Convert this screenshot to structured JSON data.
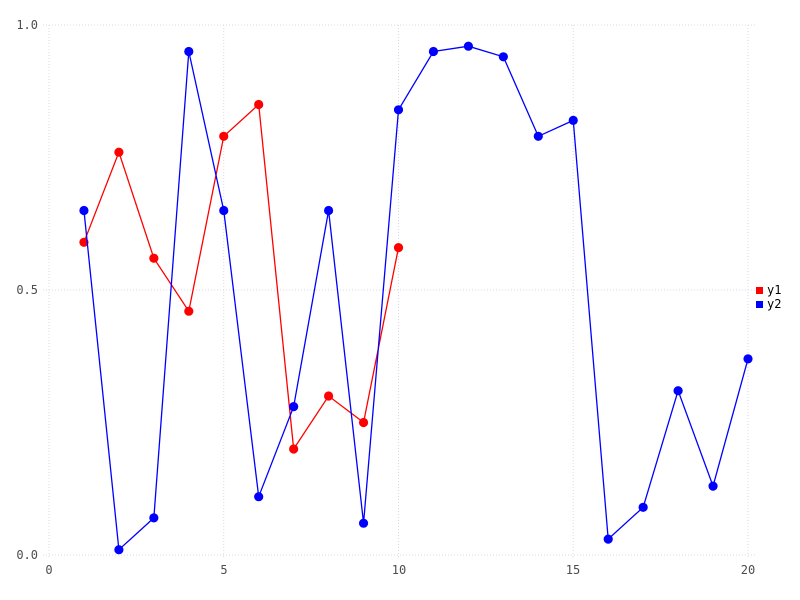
{
  "chart_data": {
    "type": "line",
    "title": "",
    "xlabel": "",
    "ylabel": "",
    "xlim": [
      0,
      20
    ],
    "ylim": [
      0.0,
      1.0
    ],
    "grid": "dotted",
    "legend_position": "right-middle",
    "background_color": "#ffffff",
    "gridline_color": "#d9d9e6",
    "tick_label_color": "#4d4d4d",
    "xticks": [
      {
        "value": 0,
        "label": "0"
      },
      {
        "value": 5,
        "label": "5"
      },
      {
        "value": 10,
        "label": "10"
      },
      {
        "value": 15,
        "label": "15"
      },
      {
        "value": 20,
        "label": "20"
      }
    ],
    "yticks": [
      {
        "value": 1.0,
        "label": "1.0"
      },
      {
        "value": 0.5,
        "label": "0.5"
      },
      {
        "value": 0.0,
        "label": "0.0"
      }
    ],
    "series": [
      {
        "name": "y1",
        "color": "#ff0000",
        "marker": "circle",
        "x": [
          1,
          2,
          3,
          4,
          5,
          6,
          7,
          8,
          9,
          10
        ],
        "values": [
          0.59,
          0.76,
          0.56,
          0.46,
          0.79,
          0.85,
          0.2,
          0.3,
          0.25,
          0.58
        ]
      },
      {
        "name": "y2",
        "color": "#0000ff",
        "marker": "circle",
        "x": [
          1,
          2,
          3,
          4,
          5,
          6,
          7,
          8,
          9,
          10,
          11,
          12,
          13,
          14,
          15,
          16,
          17,
          18,
          19,
          20
        ],
        "values": [
          0.65,
          0.01,
          0.07,
          0.95,
          0.65,
          0.11,
          0.28,
          0.65,
          0.06,
          0.84,
          0.95,
          0.96,
          0.94,
          0.79,
          0.82,
          0.03,
          0.09,
          0.31,
          0.13,
          0.37
        ]
      }
    ]
  }
}
